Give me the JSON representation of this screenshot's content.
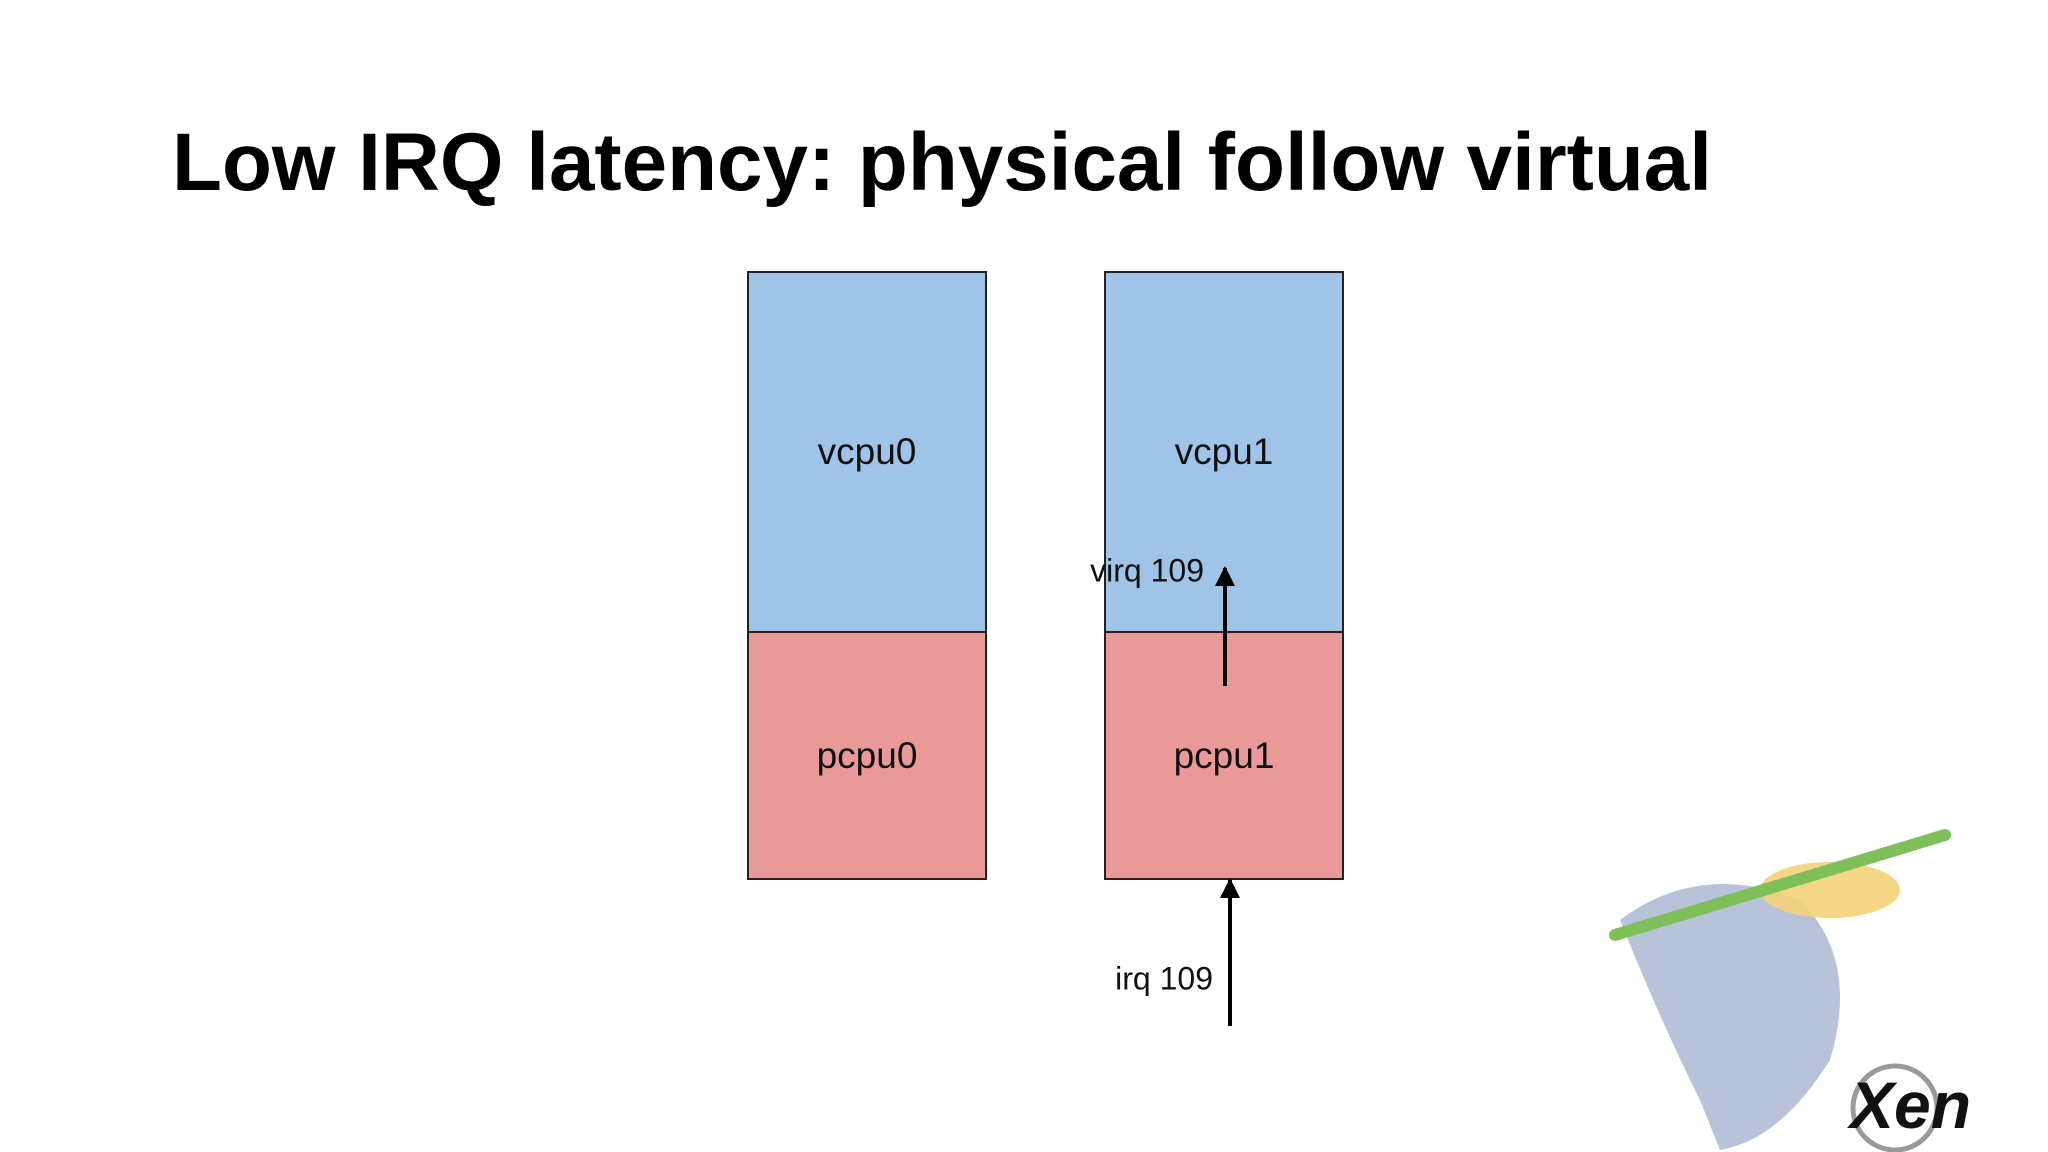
{
  "header": {
    "title": "Low IRQ latency: physical follow virtual"
  },
  "nodes": [
    {
      "label": "vcpu0"
    },
    {
      "label": "pcpu0"
    },
    {
      "label": "vcpu1"
    },
    {
      "label": "pcpu1"
    }
  ],
  "edges": [
    {
      "label": "virq 109"
    },
    {
      "label": "irq 109"
    }
  ],
  "logo": {
    "text": "Xen"
  }
}
